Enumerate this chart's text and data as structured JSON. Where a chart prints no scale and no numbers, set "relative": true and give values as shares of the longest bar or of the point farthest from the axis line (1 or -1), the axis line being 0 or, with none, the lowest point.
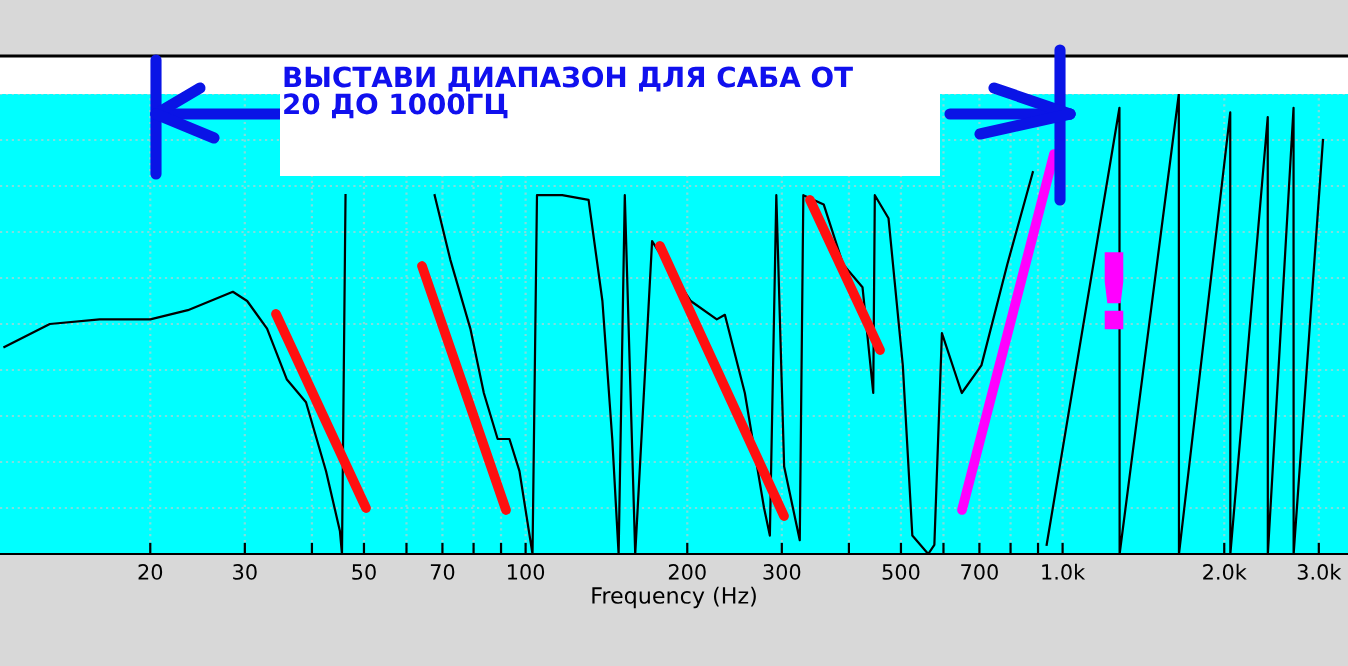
{
  "chart_data": {
    "type": "line",
    "relative": true,
    "log": "x",
    "xlabel": "Frequency (Hz)",
    "xlim": [
      10.5,
      3400
    ],
    "xticks": [
      20,
      30,
      {
        "value": 40,
        "label": null
      },
      50,
      {
        "value": 60,
        "label": null
      },
      70,
      {
        "value": 80,
        "label": null
      },
      {
        "value": 90,
        "label": null
      },
      100,
      200,
      300,
      {
        "value": 400,
        "label": null
      },
      500,
      {
        "value": 600,
        "label": null
      },
      700,
      {
        "value": 800,
        "label": null
      },
      {
        "value": 900,
        "label": null
      },
      {
        "value": 1000,
        "label": "1.0k"
      },
      {
        "value": 2000,
        "label": "2.0k"
      },
      {
        "value": 3000,
        "label": "3.0k"
      }
    ],
    "grid": true,
    "marker": "none",
    "line_style": "solid",
    "annotations": [
      "ВЫСТАВИ ДИАПАЗОН ДЛЯ САБА ОТ\n20 ДО 1000ГЦ",
      "!"
    ],
    "series": [
      {
        "color": "#000000",
        "x": [
          10.7,
          13.0,
          16.1,
          20,
          23.5,
          28.5,
          30.3,
          33,
          35.9,
          39,
          42.5,
          45.1,
          45.5,
          46.2,
          66.5,
          67.7,
          72.4,
          78.9,
          83.6,
          88.7,
          93.3,
          97.4,
          103,
          105,
          117,
          131,
          139,
          145,
          149,
          153,
          160,
          172,
          203,
          227,
          235,
          256,
          278,
          285,
          293,
          303,
          324,
          329,
          359,
          390,
          424,
          444,
          447,
          474,
          504,
          525,
          562,
          577,
          596,
          649,
          706,
          789,
          880,
          919,
          934,
          1276,
          1277,
          1646,
          1647,
          2052,
          2053,
          2410,
          2411,
          2692,
          2693,
          3054
        ],
        "values": [
          0.45,
          0.5,
          0.51,
          0.51,
          0.53,
          0.57,
          0.55,
          0.49,
          0.38,
          0.33,
          0.18,
          0.05,
          0,
          0.78,
          null,
          0.78,
          0.64,
          0.49,
          0.35,
          0.25,
          0.25,
          0.18,
          0,
          0.78,
          0.78,
          0.77,
          0.55,
          0.25,
          0,
          0.78,
          0,
          0.68,
          0.55,
          0.51,
          0.52,
          0.35,
          0.1,
          0.04,
          0.78,
          0.19,
          0.03,
          0.78,
          0.76,
          0.63,
          0.58,
          0.35,
          0.78,
          0.73,
          0.41,
          0.04,
          0,
          0.02,
          0.48,
          0.35,
          0.41,
          0.63,
          0.83,
          null,
          0.02,
          0.97,
          0,
          1,
          0,
          0.96,
          0,
          0.95,
          0,
          0.97,
          0,
          0.9
        ]
      }
    ]
  }
}
